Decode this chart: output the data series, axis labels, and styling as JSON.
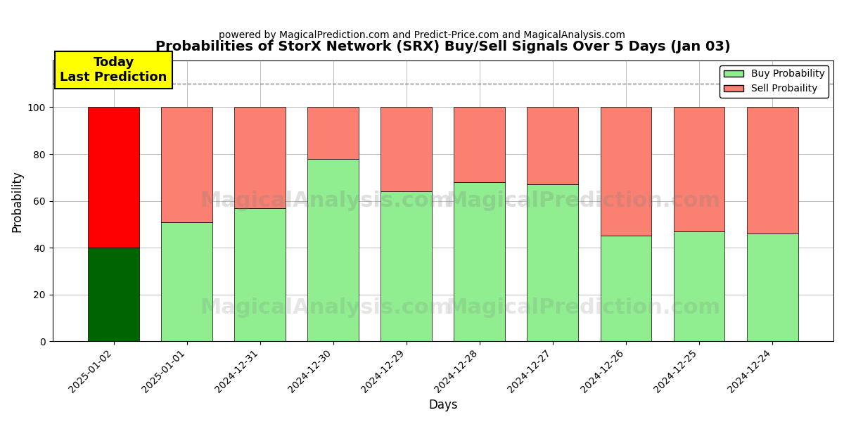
{
  "title": "Probabilities of StorX Network (SRX) Buy/Sell Signals Over 5 Days (Jan 03)",
  "subtitle": "powered by MagicalPrediction.com and Predict-Price.com and MagicalAnalysis.com",
  "xlabel": "Days",
  "ylabel": "Probability",
  "categories": [
    "2025-01-02",
    "2025-01-01",
    "2024-12-31",
    "2024-12-30",
    "2024-12-29",
    "2024-12-28",
    "2024-12-27",
    "2024-12-26",
    "2024-12-25",
    "2024-12-24"
  ],
  "buy_values": [
    40,
    51,
    57,
    78,
    64,
    68,
    67,
    45,
    47,
    46
  ],
  "sell_values": [
    60,
    49,
    43,
    22,
    36,
    32,
    33,
    55,
    53,
    54
  ],
  "buy_colors": [
    "#006400",
    "#90EE90",
    "#90EE90",
    "#90EE90",
    "#90EE90",
    "#90EE90",
    "#90EE90",
    "#90EE90",
    "#90EE90",
    "#90EE90"
  ],
  "sell_colors": [
    "#FF0000",
    "#FA8072",
    "#FA8072",
    "#FA8072",
    "#FA8072",
    "#FA8072",
    "#FA8072",
    "#FA8072",
    "#FA8072",
    "#FA8072"
  ],
  "ylim": [
    0,
    120
  ],
  "yticks": [
    0,
    20,
    40,
    60,
    80,
    100
  ],
  "dashed_line_y": 110,
  "annotation_text": "Today\nLast Prediction",
  "annotation_bg": "#FFFF00",
  "watermark_texts": [
    "MagicalAnalysis.com",
    "MagicalPrediction.com"
  ],
  "legend_buy_color": "#90EE90",
  "legend_sell_color": "#FA8072",
  "bar_edge_color": "#000000",
  "bar_edge_width": 0.5,
  "figsize": [
    12,
    6
  ],
  "dpi": 100
}
